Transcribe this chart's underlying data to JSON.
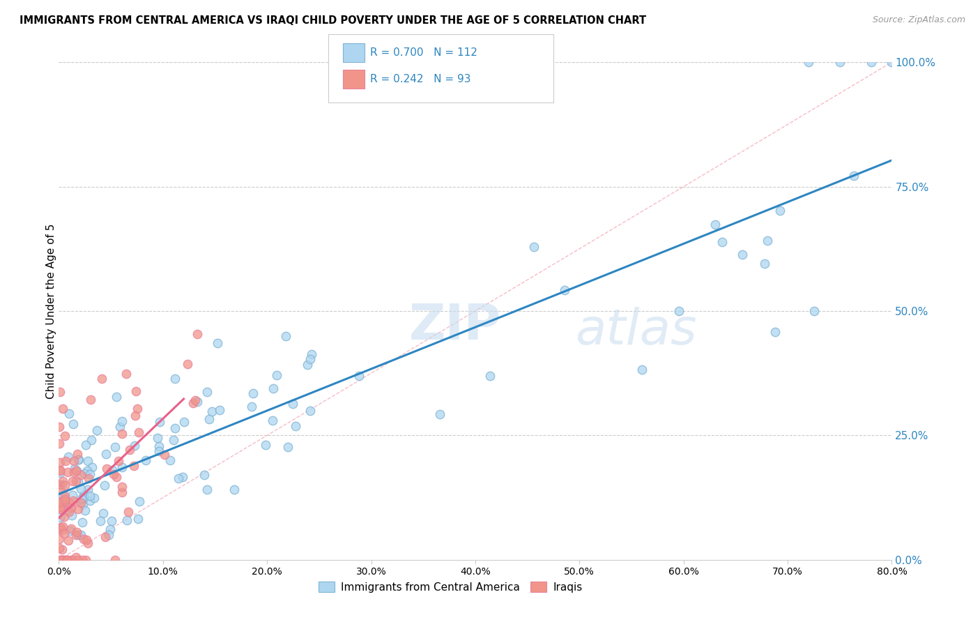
{
  "title": "IMMIGRANTS FROM CENTRAL AMERICA VS IRAQI CHILD POVERTY UNDER THE AGE OF 5 CORRELATION CHART",
  "source": "Source: ZipAtlas.com",
  "ylabel_label": "Child Poverty Under the Age of 5",
  "legend_label1": "Immigrants from Central America",
  "legend_label2": "Iraqis",
  "R1": 0.7,
  "N1": 112,
  "R2": 0.242,
  "N2": 93,
  "color_blue_fill": "#AED6F1",
  "color_blue_edge": "#7FB3D3",
  "color_pink_fill": "#F1948A",
  "color_pink_edge": "#E8829A",
  "color_line_blue": "#2E86C1",
  "color_line_pink": "#E8608A",
  "color_diag": "#F1948A",
  "color_ytick": "#2E86C1",
  "background_color": "#FFFFFF",
  "watermark": "ZIPatlas",
  "watermark_zip": "ZIP",
  "watermark_atlas": "atlas"
}
